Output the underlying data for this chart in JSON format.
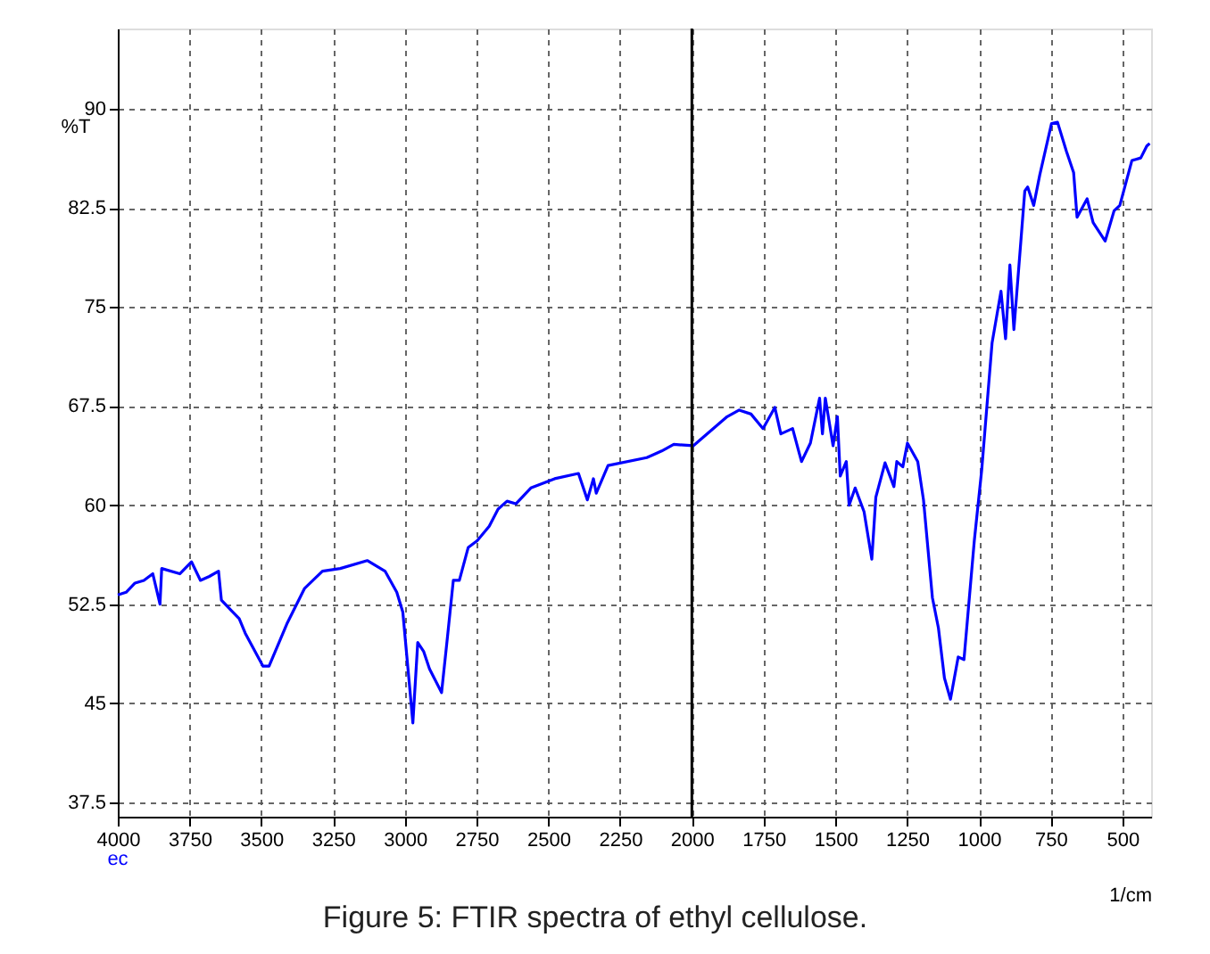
{
  "chart_data": {
    "type": "line",
    "title": "Figure 5: FTIR spectra of ethyl cellulose.",
    "xlabel": "1/cm",
    "ylabel": "%T",
    "xlim": [
      4000,
      400
    ],
    "xticks": [
      4000,
      3750,
      3500,
      3250,
      3000,
      2750,
      2500,
      2250,
      2000,
      1750,
      1500,
      1250,
      1000,
      750,
      500
    ],
    "ylim": [
      36.4,
      96.1
    ],
    "yticks": [
      37.5,
      45,
      52.5,
      60,
      67.5,
      75,
      82.5,
      90
    ],
    "grid": true,
    "marker": "none",
    "line_style": "solid",
    "ref_lines": [
      {
        "axis": "x",
        "value": 2000,
        "color": "#000000",
        "line_style": "solid"
      }
    ],
    "series": [
      {
        "name": "ec",
        "color": "#0000ff",
        "x": [
          4000,
          3971,
          3940,
          3909,
          3878,
          3853,
          3847,
          3784,
          3743,
          3712,
          3681,
          3649,
          3639,
          3608,
          3577,
          3556,
          3494,
          3473,
          3411,
          3349,
          3287,
          3225,
          3131,
          3069,
          3028,
          3007,
          2986,
          2972,
          2955,
          2934,
          2914,
          2872,
          2851,
          2831,
          2810,
          2779,
          2748,
          2706,
          2675,
          2644,
          2613,
          2561,
          2478,
          2395,
          2364,
          2343,
          2333,
          2292,
          2157,
          2105,
          2063,
          1995,
          1877,
          1835,
          1794,
          1752,
          1711,
          1690,
          1649,
          1618,
          1587,
          1555,
          1545,
          1535,
          1508,
          1493,
          1483,
          1462,
          1452,
          1431,
          1400,
          1373,
          1359,
          1327,
          1296,
          1286,
          1265,
          1249,
          1213,
          1193,
          1162,
          1141,
          1120,
          1099,
          1072,
          1052,
          1016,
          990,
          954,
          923,
          907,
          892,
          878,
          840,
          830,
          809,
          788,
          747,
          726,
          695,
          670,
          658,
          623,
          602,
          560,
          529,
          509,
          467,
          436,
          415,
          405
        ],
        "values": [
          53.2,
          53.4,
          54.1,
          54.3,
          54.8,
          52.5,
          55.2,
          54.8,
          55.7,
          54.3,
          54.6,
          55.0,
          52.8,
          52.1,
          51.4,
          50.3,
          47.8,
          47.8,
          51.0,
          53.7,
          55.0,
          55.2,
          55.8,
          55.0,
          53.4,
          51.9,
          46.9,
          43.5,
          49.6,
          48.9,
          47.6,
          45.8,
          50.1,
          54.3,
          54.3,
          56.8,
          57.3,
          58.4,
          59.7,
          60.3,
          60.1,
          61.3,
          62.0,
          62.4,
          60.4,
          62.0,
          60.9,
          63.0,
          63.6,
          64.1,
          64.6,
          64.5,
          66.7,
          67.2,
          66.9,
          65.8,
          67.4,
          65.4,
          65.8,
          63.3,
          64.7,
          68.1,
          65.4,
          68.1,
          64.5,
          66.7,
          62.2,
          63.3,
          60.0,
          61.3,
          59.5,
          55.9,
          60.6,
          63.2,
          61.4,
          63.3,
          62.9,
          64.7,
          63.3,
          60.4,
          53.0,
          50.7,
          46.9,
          45.3,
          48.5,
          48.3,
          57.3,
          62.7,
          72.3,
          76.2,
          72.6,
          78.2,
          73.3,
          83.8,
          84.1,
          82.7,
          85.0,
          88.9,
          89.0,
          86.8,
          85.2,
          81.8,
          83.2,
          81.4,
          80.0,
          82.3,
          82.7,
          86.1,
          86.3,
          87.2,
          87.4
        ]
      }
    ]
  }
}
